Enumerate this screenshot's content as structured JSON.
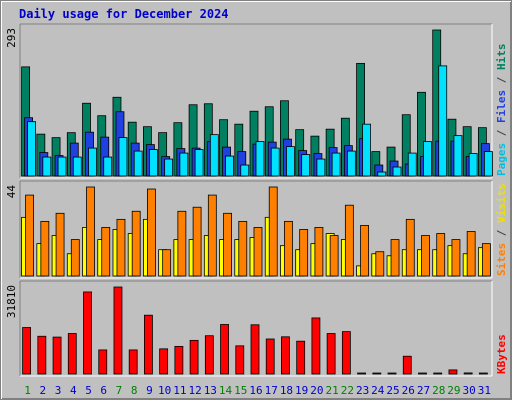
{
  "chart_data": {
    "type": "bar",
    "title": "Daily usage for December 2024",
    "categories": [
      "1",
      "2",
      "3",
      "4",
      "5",
      "6",
      "7",
      "8",
      "9",
      "10",
      "11",
      "12",
      "13",
      "14",
      "15",
      "16",
      "17",
      "18",
      "19",
      "20",
      "21",
      "22",
      "23",
      "24",
      "25",
      "26",
      "27",
      "28",
      "29",
      "30",
      "31"
    ],
    "weekend_categories": [
      "1",
      "7",
      "8",
      "14",
      "15",
      "21",
      "22",
      "28",
      "29"
    ],
    "panels": [
      {
        "id": "hits-files-pages",
        "max_label": "293",
        "ymax": 293,
        "legend": [
          {
            "text": "Pages",
            "color": "#00c0e0"
          },
          {
            "text": " / ",
            "color": "#404040"
          },
          {
            "text": "Files",
            "color": "#2040e0"
          },
          {
            "text": " / ",
            "color": "#404040"
          },
          {
            "text": "Hits",
            "color": "#008060"
          }
        ],
        "series": [
          {
            "name": "Hits",
            "color": "#008060",
            "values": [
              219,
              84,
              77,
              87,
              146,
              121,
              158,
              108,
              99,
              87,
              107,
              143,
              145,
              113,
              104,
              130,
              139,
              151,
              93,
              80,
              94,
              116,
              226,
              49,
              58,
              123,
              168,
              293,
              114,
              99,
              97
            ]
          },
          {
            "name": "Files",
            "color": "#2040e0",
            "values": [
              117,
              47,
              41,
              66,
              88,
              78,
              129,
              66,
              63,
              39,
              55,
              56,
              69,
              58,
              49,
              64,
              68,
              74,
              51,
              45,
              57,
              61,
              75,
              22,
              30,
              24,
              39,
              70,
              70,
              39,
              65
            ]
          },
          {
            "name": "Pages",
            "color": "#00e0ff",
            "values": [
              109,
              38,
              38,
              38,
              56,
              38,
              77,
              50,
              53,
              34,
              46,
              53,
              83,
              40,
              22,
              69,
              56,
              59,
              43,
              34,
              46,
              50,
              104,
              8,
              18,
              46,
              69,
              221,
              81,
              45,
              49
            ]
          }
        ]
      },
      {
        "id": "visits-sites",
        "max_label": "44",
        "ymax": 44,
        "legend": [
          {
            "text": "Sites",
            "color": "#ff8000"
          },
          {
            "text": " / ",
            "color": "#404040"
          },
          {
            "text": "Visits",
            "color": "#f0e000"
          }
        ],
        "series": [
          {
            "name": "Visits",
            "color": "#ffff00",
            "values": [
              29,
              16,
              20,
              11,
              24,
              18,
              23,
              21,
              28,
              13,
              18,
              18,
              20,
              18,
              18,
              19,
              29,
              15,
              13,
              16,
              21,
              18,
              5,
              11,
              10,
              13,
              13,
              13,
              15,
              11,
              14
            ]
          },
          {
            "name": "Sites",
            "color": "#ff8000",
            "values": [
              40,
              27,
              31,
              18,
              44,
              24,
              28,
              32,
              43,
              13,
              32,
              34,
              40,
              31,
              27,
              24,
              44,
              27,
              23,
              24,
              20,
              35,
              25,
              12,
              18,
              28,
              20,
              21,
              18,
              22,
              16
            ]
          }
        ]
      },
      {
        "id": "kbytes",
        "max_label": "31810",
        "ymax": 31810,
        "legend": [
          {
            "text": "KBytes",
            "color": "#ff0000"
          }
        ],
        "series": [
          {
            "name": "KBytes",
            "color": "#ff0000",
            "values": [
              17000,
              13800,
              13500,
              14800,
              30000,
              8800,
              31810,
              8800,
              21500,
              9200,
              10100,
              12300,
              14000,
              18100,
              10300,
              18000,
              12800,
              13600,
              12000,
              20500,
              14800,
              15500,
              300,
              300,
              300,
              6500,
              300,
              300,
              1500,
              400,
              300
            ]
          }
        ]
      }
    ]
  },
  "colors": {
    "background": "#c0c0c0",
    "weekday_label": "#0000cc",
    "weekend_label": "#008000",
    "title": "#0000cc"
  }
}
